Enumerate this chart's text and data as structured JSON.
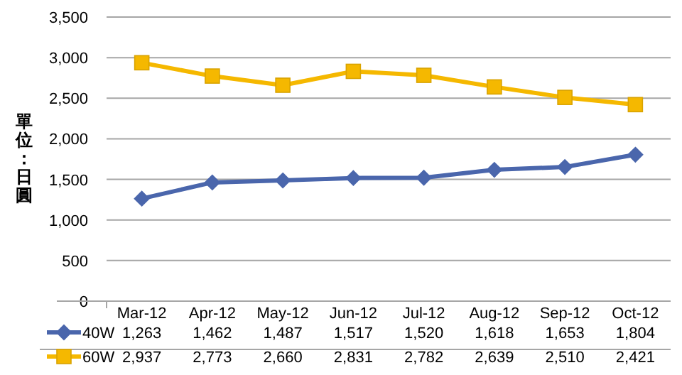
{
  "chart_data": {
    "type": "line",
    "ylabel": "單位：日圓",
    "categories": [
      "Mar-12",
      "Apr-12",
      "May-12",
      "Jun-12",
      "Jul-12",
      "Aug-12",
      "Sep-12",
      "Oct-12"
    ],
    "series": [
      {
        "name": "40W",
        "color": "#4a66ac",
        "marker": "diamond",
        "values": [
          1263,
          1462,
          1487,
          1517,
          1520,
          1618,
          1653,
          1804
        ],
        "value_labels": [
          "1,263",
          "1,462",
          "1,487",
          "1,517",
          "1,520",
          "1,618",
          "1,653",
          "1,804"
        ]
      },
      {
        "name": "60W",
        "color": "#f5b800",
        "marker": "square",
        "values": [
          2937,
          2773,
          2660,
          2831,
          2782,
          2639,
          2510,
          2421
        ],
        "value_labels": [
          "2,937",
          "2,773",
          "2,660",
          "2,831",
          "2,782",
          "2,639",
          "2,510",
          "2,421"
        ]
      }
    ],
    "ylim": [
      0,
      3500
    ],
    "yticks": [
      {
        "value": 0,
        "label": "0"
      },
      {
        "value": 500,
        "label": "500"
      },
      {
        "value": 1000,
        "label": "1,000"
      },
      {
        "value": 1500,
        "label": "1,500"
      },
      {
        "value": 2000,
        "label": "2,000"
      },
      {
        "value": 2500,
        "label": "2,500"
      },
      {
        "value": 3000,
        "label": "3,000"
      },
      {
        "value": 3500,
        "label": "3,500"
      }
    ],
    "grid": "y",
    "legend": "bottom"
  }
}
